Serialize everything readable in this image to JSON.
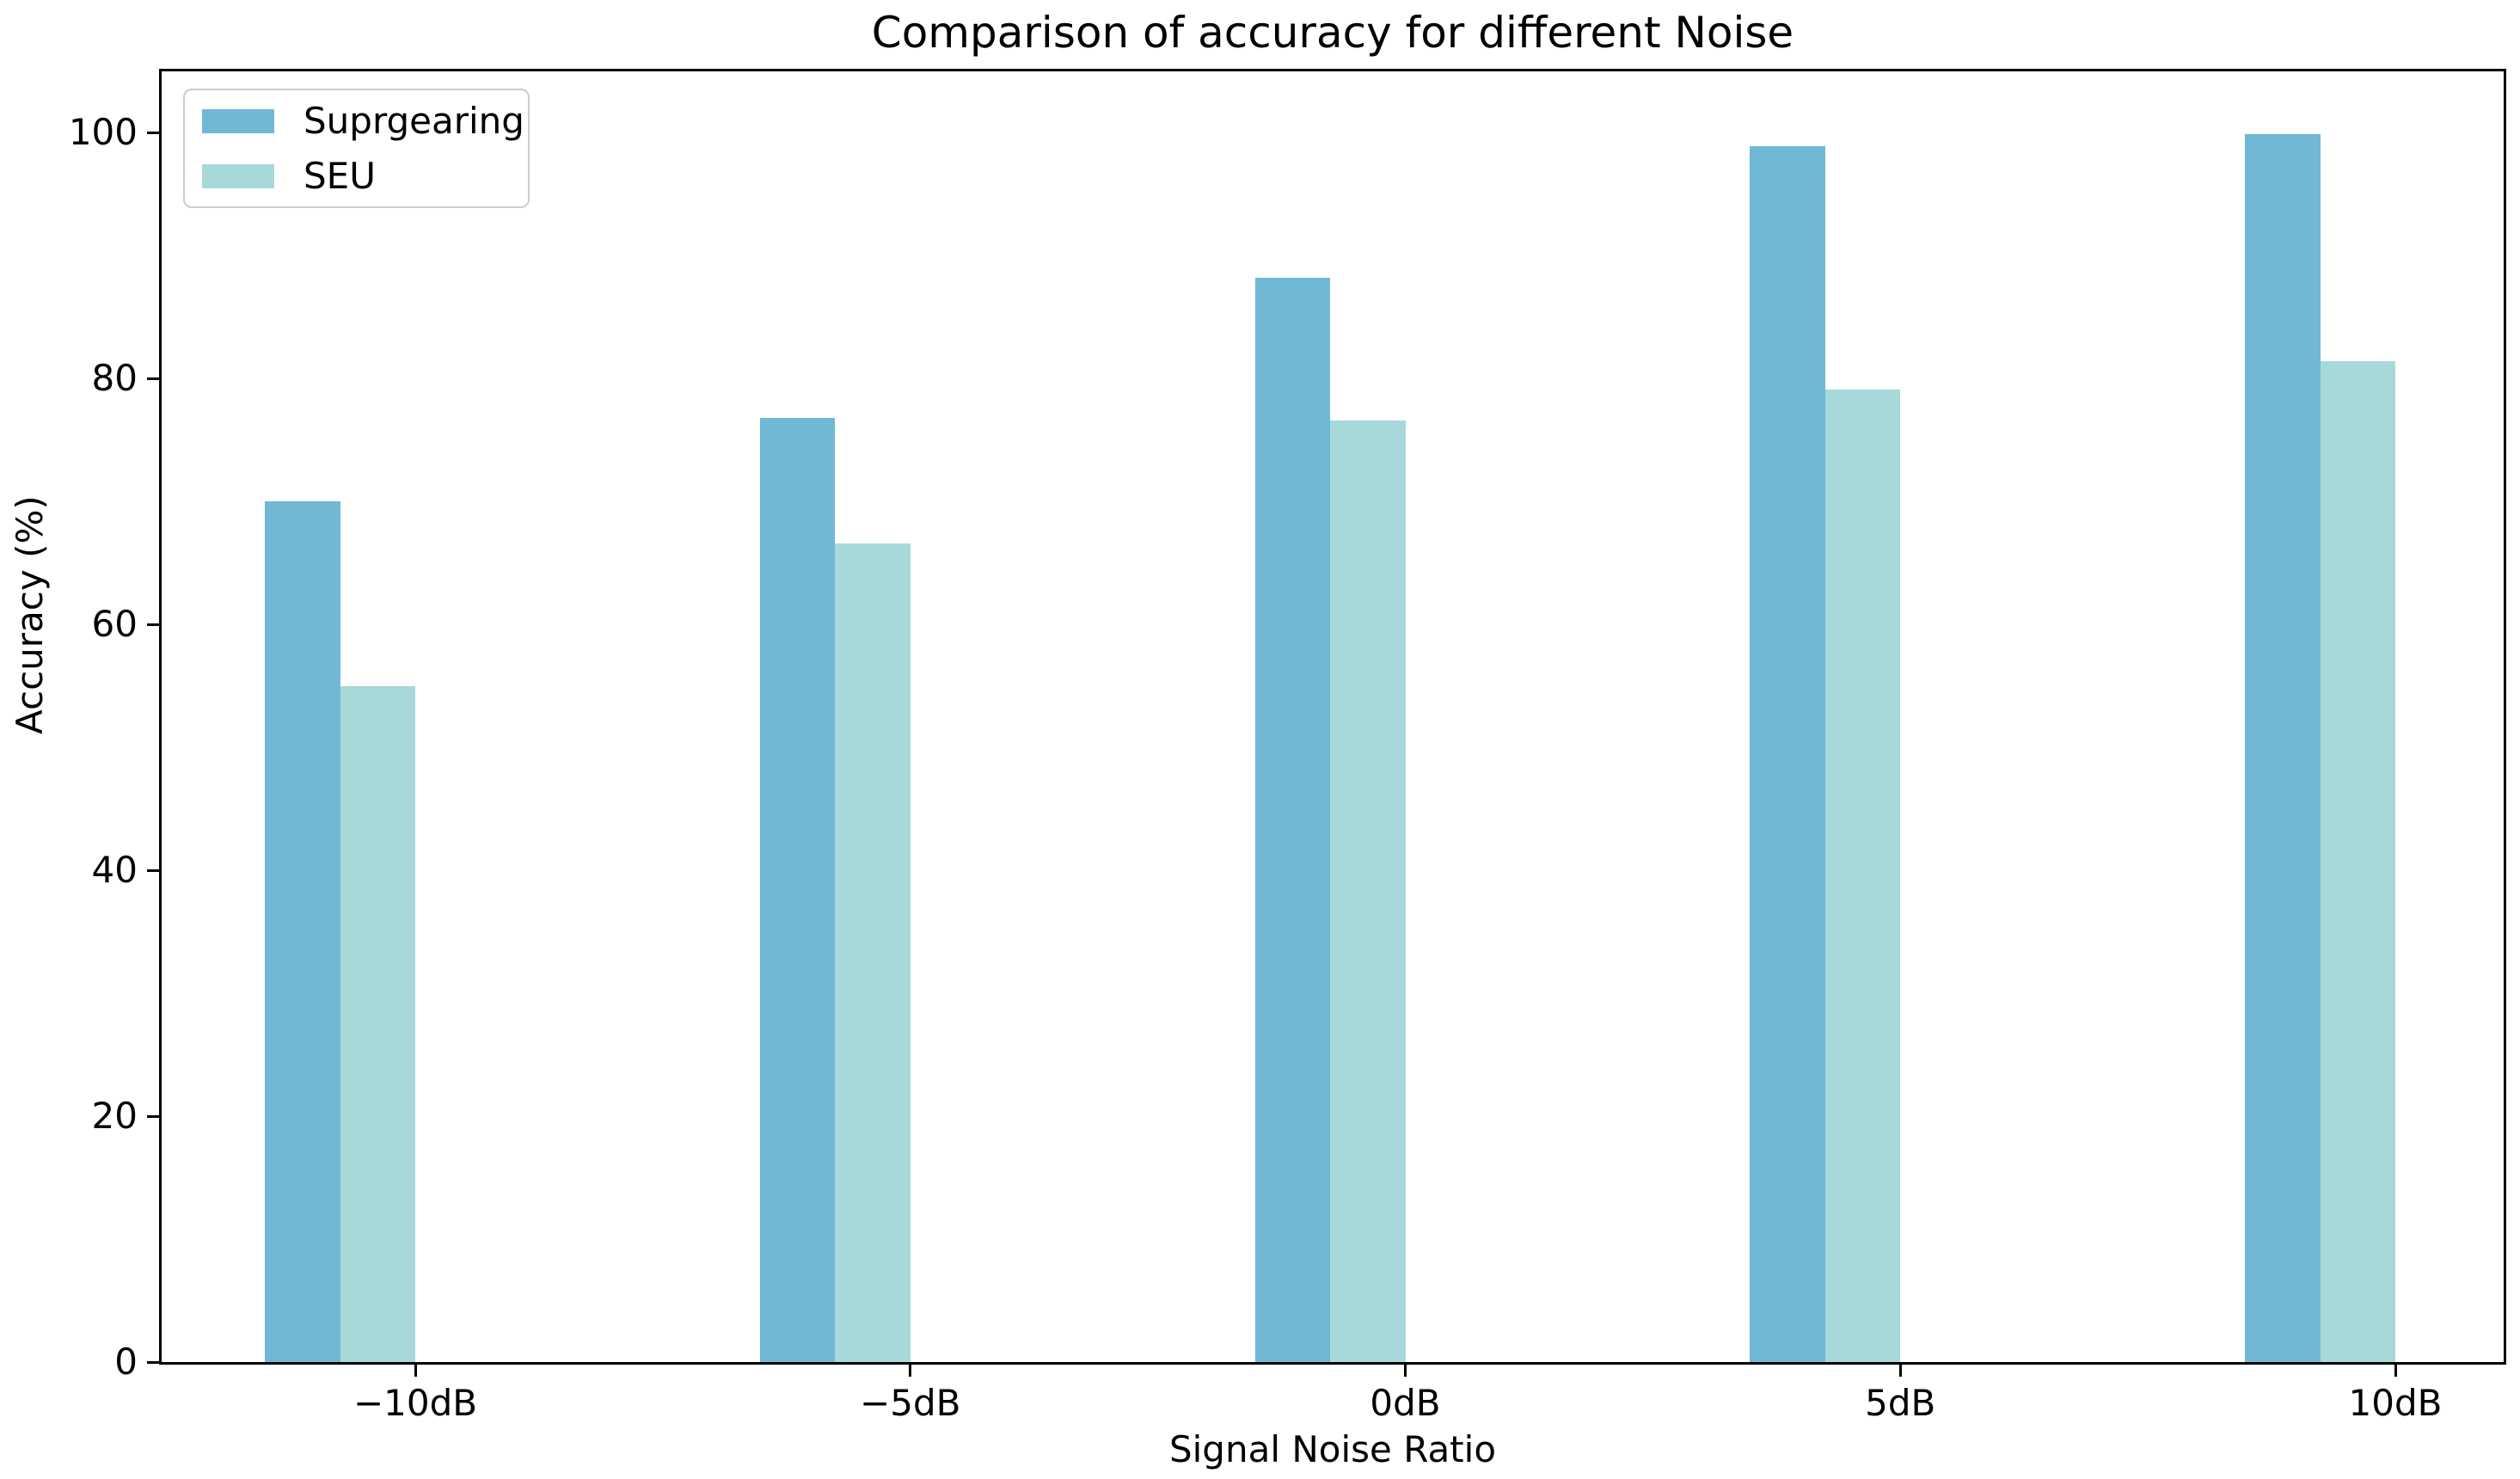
{
  "chart_data": {
    "type": "bar",
    "title": "Comparison of accuracy for different Noise",
    "xlabel": "Signal Noise Ratio",
    "ylabel": "Accuracy (%)",
    "categories": [
      "−10dB",
      "−5dB",
      "0dB",
      "5dB",
      "10dB"
    ],
    "series": [
      {
        "name": "Suprgearing",
        "color": "#70b8d4",
        "values": [
          70.0,
          76.8,
          88.2,
          98.9,
          99.9
        ]
      },
      {
        "name": "SEU",
        "color": "#a8d9da",
        "values": [
          55.0,
          66.6,
          76.6,
          79.1,
          81.4
        ]
      }
    ],
    "ylim": [
      0,
      105
    ],
    "yticks": [
      0,
      20,
      40,
      60,
      80,
      100
    ],
    "grid": false,
    "legend_position": "upper left",
    "background_color": "#ffffff",
    "axis_color": "#000000"
  }
}
